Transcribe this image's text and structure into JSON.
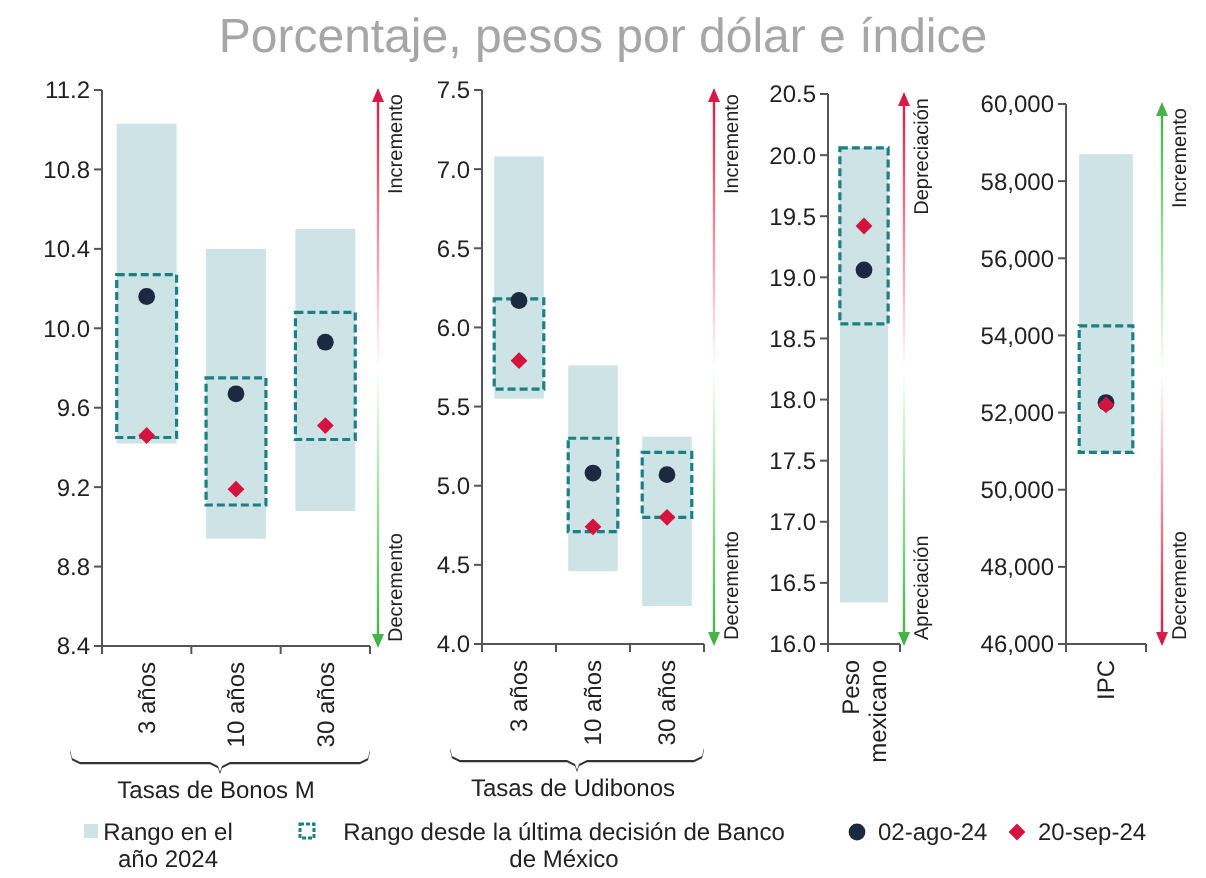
{
  "chart_data": [
    {
      "type": "bar",
      "title": "Porcentaje, pesos por dólar e índice",
      "xlabel": "Tasas de Bonos M",
      "categories": [
        "3 años",
        "10 años",
        "30 años"
      ],
      "ylim": [
        8.4,
        11.2
      ],
      "yticks": [
        {
          "value": 8.4,
          "label": "8.4"
        },
        {
          "value": 8.8,
          "label": "8.8"
        },
        {
          "value": 9.2,
          "label": "9.2"
        },
        {
          "value": 9.6,
          "label": "9.6"
        },
        {
          "value": 10,
          "label": "10.0"
        },
        {
          "value": 10.4,
          "label": "10.4"
        },
        {
          "value": 10.8,
          "label": "10.8"
        },
        {
          "value": 11.2,
          "label": "11.2"
        }
      ],
      "grid": false,
      "legend": "bottom",
      "annotations": [
        "Incremento",
        "Decremento"
      ],
      "series": [
        {
          "type": "bar",
          "name": "Rango en el año 2024",
          "color": "#cde3e5",
          "base": [
            9.42,
            8.94,
            9.08
          ],
          "values": [
            1.61,
            1.46,
            1.42
          ]
        },
        {
          "type": "bar",
          "name": "Rango desde la última decisión de Banco de México",
          "color": "#1a7f86",
          "line_style": "dashed",
          "base": [
            9.45,
            9.11,
            9.44
          ],
          "values": [
            0.82,
            0.64,
            0.64
          ]
        },
        {
          "type": "scatter",
          "name": "02-ago-24",
          "color": "#1b2a41",
          "marker": "circle",
          "x": [
            "3 años",
            "10 años",
            "30 años"
          ],
          "values": [
            10.16,
            9.67,
            9.93
          ]
        },
        {
          "type": "scatter",
          "name": "20-sep-24",
          "color": "#d6123f",
          "marker": "diamond",
          "x": [
            "3 años",
            "10 años",
            "30 años"
          ],
          "values": [
            9.46,
            9.19,
            9.51
          ]
        }
      ]
    },
    {
      "type": "bar",
      "xlabel": "Tasas de Udibonos",
      "categories": [
        "3 años",
        "10 años",
        "30 años"
      ],
      "ylim": [
        4,
        7.5
      ],
      "yticks": [
        {
          "value": 4,
          "label": "4.0"
        },
        {
          "value": 4.5,
          "label": "4.5"
        },
        {
          "value": 5,
          "label": "5.0"
        },
        {
          "value": 5.5,
          "label": "5.5"
        },
        {
          "value": 6,
          "label": "6.0"
        },
        {
          "value": 6.5,
          "label": "6.5"
        },
        {
          "value": 7,
          "label": "7.0"
        },
        {
          "value": 7.5,
          "label": "7.5"
        }
      ],
      "grid": false,
      "annotations": [
        "Incremento",
        "Decremento"
      ],
      "series": [
        {
          "type": "bar",
          "color": "#cde3e5",
          "base": [
            5.55,
            4.46,
            4.24
          ],
          "values": [
            1.53,
            1.3,
            1.07
          ]
        },
        {
          "type": "bar",
          "color": "#1a7f86",
          "line_style": "dashed",
          "base": [
            5.61,
            4.71,
            4.8
          ],
          "values": [
            0.57,
            0.59,
            0.41
          ]
        },
        {
          "type": "scatter",
          "color": "#1b2a41",
          "marker": "circle",
          "x": [
            "3 años",
            "10 años",
            "30 años"
          ],
          "values": [
            6.17,
            5.08,
            5.07
          ]
        },
        {
          "type": "scatter",
          "color": "#d6123f",
          "marker": "diamond",
          "x": [
            "3 años",
            "10 años",
            "30 años"
          ],
          "values": [
            5.79,
            4.74,
            4.8
          ]
        }
      ]
    },
    {
      "type": "bar",
      "categories": [
        "Peso mexicano"
      ],
      "ylim": [
        16,
        20.5
      ],
      "yticks": [
        {
          "value": 16,
          "label": "16.0"
        },
        {
          "value": 16.5,
          "label": "16.5"
        },
        {
          "value": 17,
          "label": "17.0"
        },
        {
          "value": 17.5,
          "label": "17.5"
        },
        {
          "value": 18,
          "label": "18.0"
        },
        {
          "value": 18.5,
          "label": "18.5"
        },
        {
          "value": 19,
          "label": "19.0"
        },
        {
          "value": 19.5,
          "label": "19.5"
        },
        {
          "value": 20,
          "label": "20.0"
        },
        {
          "value": 20.5,
          "label": "20.5"
        }
      ],
      "grid": false,
      "annotations": [
        "Depreciación",
        "Apreciación"
      ],
      "series": [
        {
          "type": "bar",
          "color": "#cde3e5",
          "base": [
            16.34
          ],
          "values": [
            3.72
          ]
        },
        {
          "type": "bar",
          "color": "#1a7f86",
          "line_style": "dashed",
          "base": [
            18.62
          ],
          "values": [
            1.44
          ]
        },
        {
          "type": "scatter",
          "color": "#1b2a41",
          "marker": "circle",
          "x": [
            "Peso mexicano"
          ],
          "values": [
            19.06
          ]
        },
        {
          "type": "scatter",
          "color": "#d6123f",
          "marker": "diamond",
          "x": [
            "Peso mexicano"
          ],
          "values": [
            19.42
          ]
        }
      ]
    },
    {
      "type": "bar",
      "categories": [
        "IPC"
      ],
      "ylim": [
        46000,
        60000
      ],
      "yticks": [
        {
          "value": 46000,
          "label": "46,000"
        },
        {
          "value": 48000,
          "label": "48,000"
        },
        {
          "value": 50000,
          "label": "50,000"
        },
        {
          "value": 52000,
          "label": "52,000"
        },
        {
          "value": 54000,
          "label": "54,000"
        },
        {
          "value": 56000,
          "label": "56,000"
        },
        {
          "value": 58000,
          "label": "58,000"
        },
        {
          "value": 60000,
          "label": "60,000"
        }
      ],
      "grid": false,
      "annotations": [
        "Incremento",
        "Decremento"
      ],
      "series": [
        {
          "type": "bar",
          "color": "#cde3e5",
          "base": [
            50970
          ],
          "values": [
            7730
          ]
        },
        {
          "type": "bar",
          "color": "#1a7f86",
          "line_style": "dashed",
          "base": [
            50970
          ],
          "values": [
            3280
          ]
        },
        {
          "type": "scatter",
          "color": "#1b2a41",
          "marker": "circle",
          "x": [
            "IPC"
          ],
          "values": [
            52260
          ]
        },
        {
          "type": "scatter",
          "color": "#d6123f",
          "marker": "diamond",
          "x": [
            "IPC"
          ],
          "values": [
            52200
          ]
        }
      ]
    }
  ]
}
